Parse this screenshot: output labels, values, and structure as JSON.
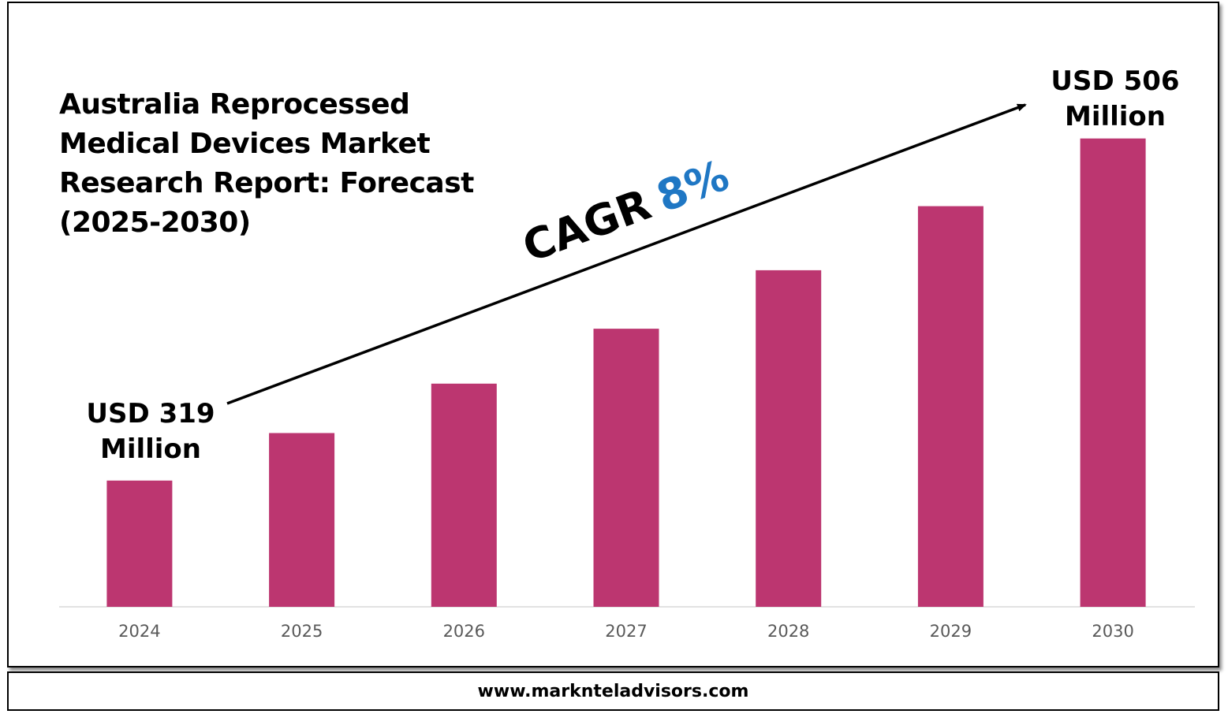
{
  "title": "Australia Reprocessed Medical Devices Market Research Report: Forecast (2025-2030)",
  "footer": "www.marknteladvisors.com",
  "chart_data": {
    "type": "bar",
    "categories": [
      "2024",
      "2025",
      "2026",
      "2027",
      "2028",
      "2029",
      "2030"
    ],
    "values": [
      319,
      345,
      372,
      402,
      434,
      469,
      506
    ],
    "ylim": [
      250,
      530
    ],
    "bar_color": "#bc3670",
    "annotations": {
      "start_label_line1": "USD 319",
      "start_label_line2": "Million",
      "end_label_line1": "USD 506",
      "end_label_line2": "Million",
      "cagr_label": "CAGR",
      "cagr_value": "8%",
      "cagr_color": "#1f77c4"
    },
    "grid": false,
    "legend": "none"
  }
}
